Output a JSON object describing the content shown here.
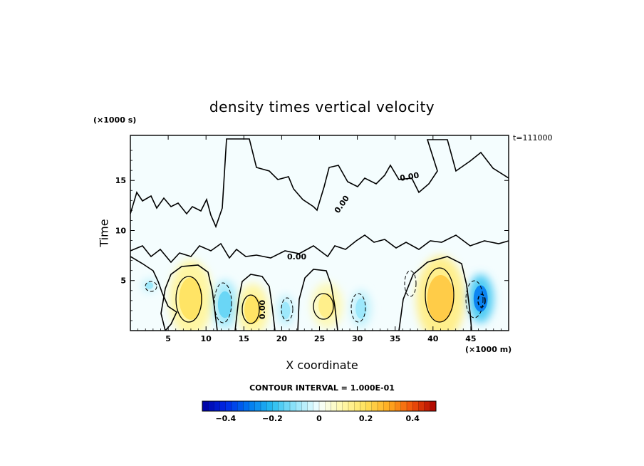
{
  "chart_data": {
    "type": "heatmap",
    "title": "density times vertical velocity",
    "xlabel": "X coordinate",
    "ylabel": "Time",
    "x_unit": "(×1000 m)",
    "y_unit": "(×1000 s)",
    "time_label": "t=111000",
    "contour_interval_text": "CONTOUR INTERVAL = 1.000E-01",
    "xlim": [
      0,
      50
    ],
    "ylim": [
      0,
      19.5
    ],
    "xticks": [
      5,
      10,
      15,
      20,
      25,
      30,
      35,
      40,
      45
    ],
    "yticks": [
      5,
      10,
      15
    ],
    "zero_contour_label": "0.00",
    "colorbar": {
      "range": [
        -0.5,
        0.5
      ],
      "tick_values": [
        -0.4,
        -0.2,
        0,
        0.2,
        0.4
      ],
      "tick_labels": [
        "−0.4",
        "−0.2",
        "0",
        "0.2",
        "0.4"
      ]
    },
    "features": [
      {
        "x": 8,
        "y": 3.2,
        "sign": "positive",
        "peak": 0.2
      },
      {
        "x": 16.2,
        "y": 2.1,
        "sign": "positive",
        "peak": 0.2
      },
      {
        "x": 26,
        "y": 2.5,
        "sign": "positive",
        "peak": 0.15
      },
      {
        "x": 41,
        "y": 3.2,
        "sign": "positive",
        "peak": 0.25
      },
      {
        "x": 2.5,
        "y": 4.5,
        "sign": "negative",
        "peak": -0.1
      },
      {
        "x": 12.5,
        "y": 2.6,
        "sign": "negative",
        "peak": -0.15
      },
      {
        "x": 20.5,
        "y": 2.0,
        "sign": "negative",
        "peak": -0.1
      },
      {
        "x": 30.5,
        "y": 2.2,
        "sign": "negative",
        "peak": -0.1
      },
      {
        "x": 46.3,
        "y": 3.2,
        "sign": "negative",
        "peak": -0.3
      }
    ]
  }
}
